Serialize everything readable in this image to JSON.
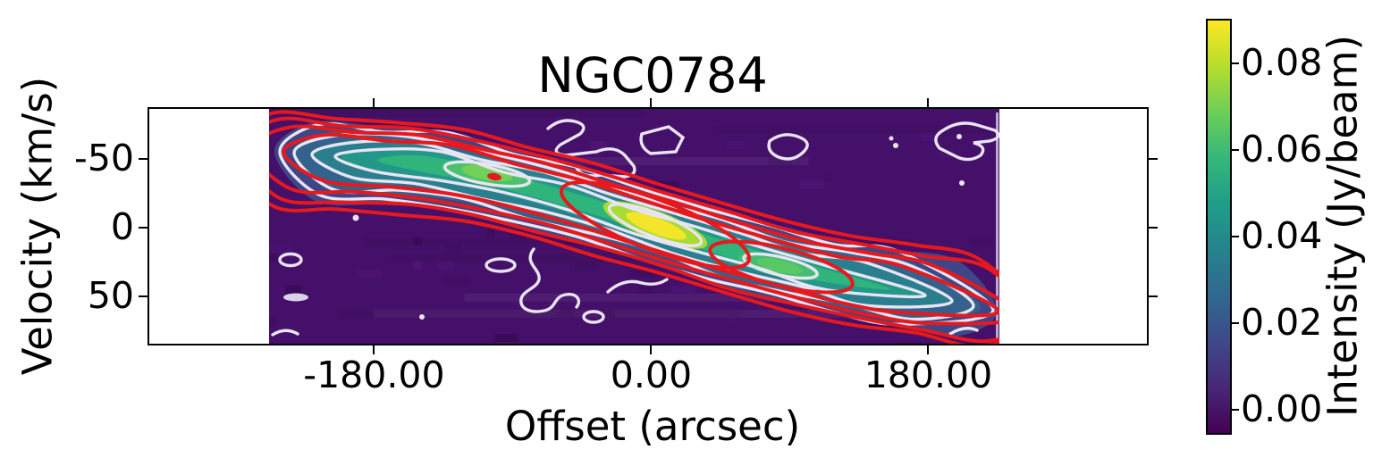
{
  "title": "NGC0784",
  "chart_data": {
    "type": "heatmap",
    "title": "NGC0784",
    "xlabel": "Offset (arcsec)",
    "ylabel": "Velocity (km/s)",
    "xlim": [
      -326,
      322
    ],
    "ylim_top_to_bottom": [
      -86,
      84
    ],
    "y_axis_inverted": true,
    "grid": false,
    "x_ticks": {
      "values": [
        -180,
        0,
        180
      ],
      "labels": [
        "-180.00",
        "0.00",
        "180.00"
      ]
    },
    "y_ticks": {
      "values": [
        -50,
        0,
        50
      ],
      "labels": [
        "-50",
        "0",
        "50"
      ]
    },
    "image_extent": {
      "offset_arcsec": [
        -248,
        226
      ],
      "velocity_kms": [
        -86,
        84
      ]
    },
    "colorbar": {
      "label": "Intensity (Jy/beam)",
      "clim": [
        -0.0045,
        0.09
      ],
      "ticks": {
        "values": [
          0.0,
          0.02,
          0.04,
          0.06,
          0.08
        ],
        "labels": [
          "0.00",
          "0.02",
          "0.04",
          "0.06",
          "0.08"
        ]
      },
      "colormap": "viridis",
      "colormap_stops": [
        "#440154",
        "#482878",
        "#3e4989",
        "#31688e",
        "#26828e",
        "#1f9e89",
        "#35b779",
        "#6ece58",
        "#b5de2b",
        "#fde725"
      ]
    },
    "contours": {
      "white_contours_color": "#e9e4f4",
      "red_contours_color": "#e7191d"
    },
    "pv_ridge": [
      {
        "offset": -248,
        "velocity": -57
      },
      {
        "offset": -187,
        "velocity": -51
      },
      {
        "offset": -134,
        "velocity": -46
      },
      {
        "offset": -82,
        "velocity": -30
      },
      {
        "offset": -36,
        "velocity": -15
      },
      {
        "offset": 0,
        "velocity": -2
      },
      {
        "offset": 46,
        "velocity": 15
      },
      {
        "offset": 88,
        "velocity": 28
      },
      {
        "offset": 133,
        "velocity": 41
      },
      {
        "offset": 185,
        "velocity": 51
      },
      {
        "offset": 226,
        "velocity": 61
      }
    ],
    "peaks": [
      {
        "offset": -107,
        "velocity": -39,
        "intensity": 0.07
      },
      {
        "offset": 3,
        "velocity": -2,
        "intensity": 0.09
      },
      {
        "offset": 84,
        "velocity": 28,
        "intensity": 0.065
      }
    ]
  }
}
